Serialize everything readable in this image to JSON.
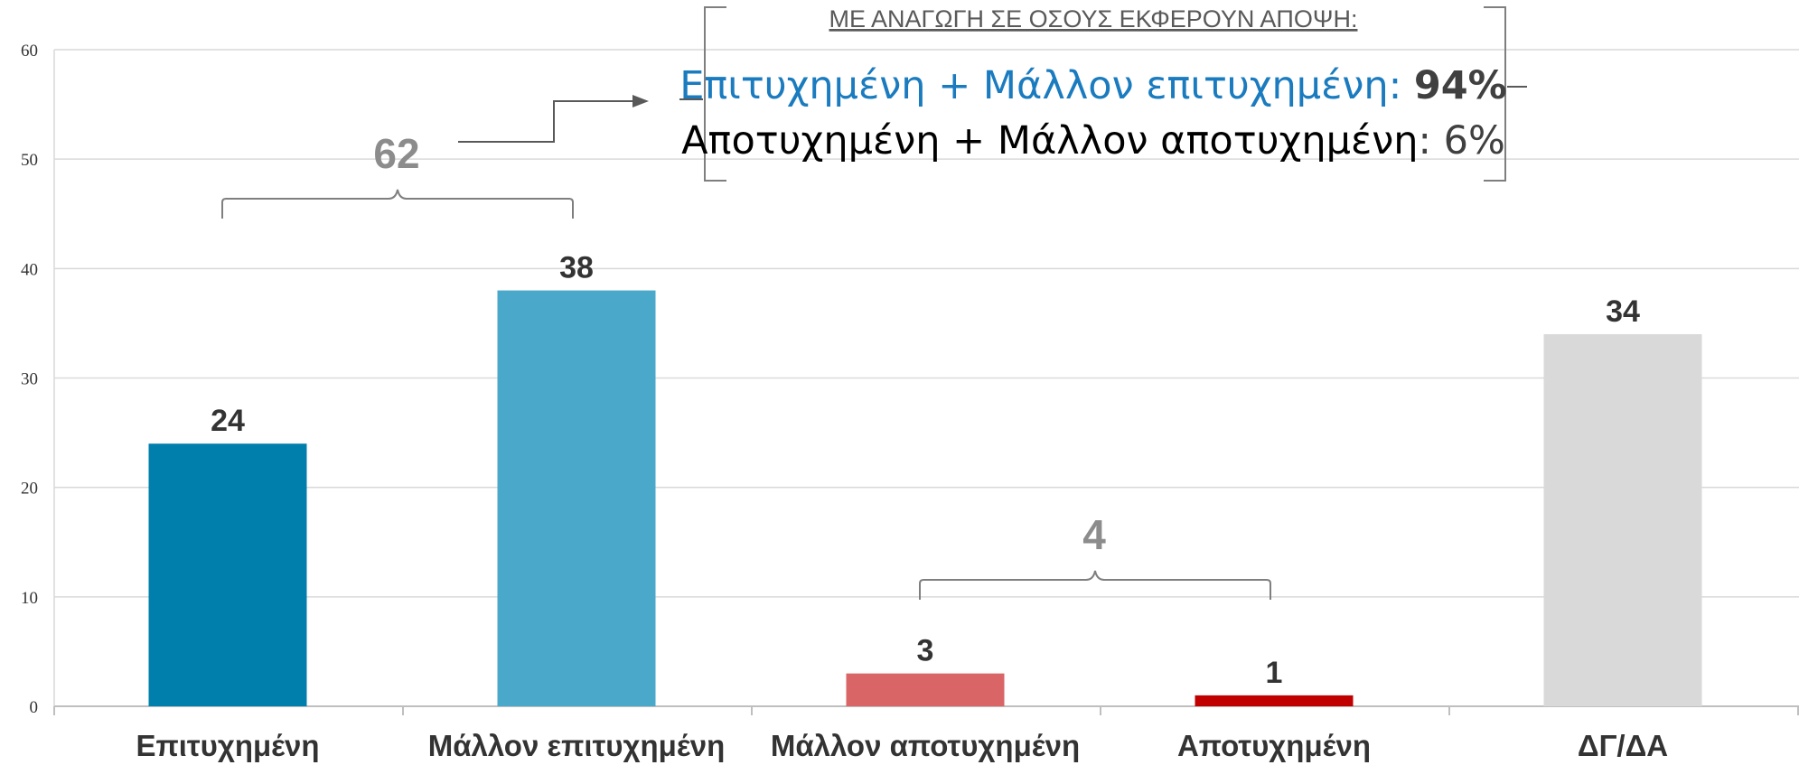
{
  "chart_data": {
    "type": "bar",
    "categories": [
      "Επιτυχημένη",
      "Μάλλον επιτυχημένη",
      "Μάλλον αποτυχημένη",
      "Αποτυχημένη",
      "ΔΓ/ΔΑ"
    ],
    "values": [
      24,
      38,
      3,
      1,
      34
    ],
    "colors": [
      "#007fad",
      "#4aa9cb",
      "#d96566",
      "#c00000",
      "#d9d9d9"
    ],
    "ylim": [
      0,
      60
    ],
    "yticks": [
      0,
      10,
      20,
      30,
      40,
      50,
      60
    ],
    "grid": true,
    "groups": [
      {
        "label": "62",
        "from": 0,
        "to": 1
      },
      {
        "label": "4",
        "from": 2,
        "to": 3
      }
    ]
  },
  "note": {
    "header": "ΜΕ ΑΝΑΓΩΓΗ ΣΕ ΟΣΟΥΣ ΕΚΦΕΡΟΥΝ ΑΠΟΨΗ:",
    "line1_label": "Επιτυχημένη + Μάλλον επιτυχημένη",
    "line1_value": "94%",
    "line2_label": "Αποτυχημένη + Μάλλον αποτυχημένη",
    "line2_value": "6%",
    "colors": {
      "line1": "#1a7bbf",
      "line2": "#000000",
      "value": "#404040"
    }
  }
}
